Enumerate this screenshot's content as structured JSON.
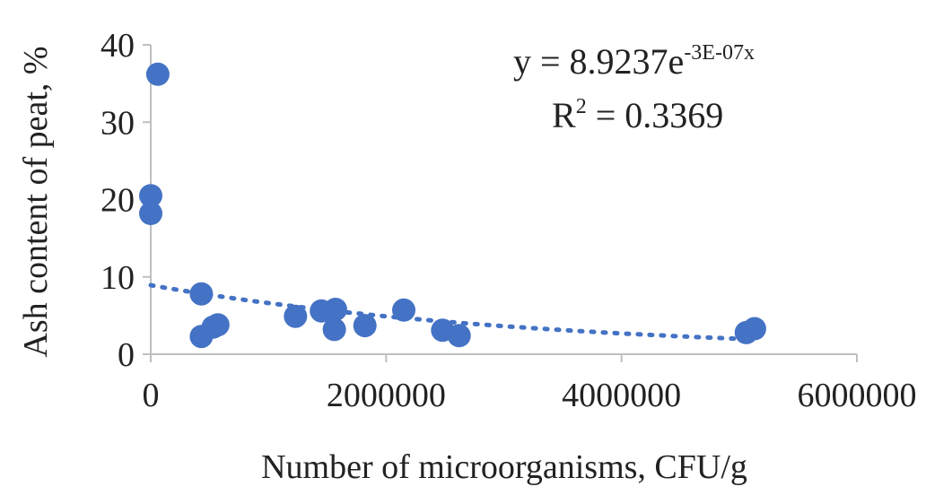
{
  "chart_data": {
    "type": "scatter",
    "title": "",
    "xlabel": "Number of microorganisms, CFU/g",
    "ylabel": "Ash content of peat, %",
    "xlim": [
      0,
      6000000
    ],
    "ylim": [
      0,
      40
    ],
    "x_ticks": [
      "0",
      "2000000",
      "4000000",
      "6000000"
    ],
    "y_ticks": [
      "0",
      "10",
      "20",
      "30",
      "40"
    ],
    "grid": false,
    "legend": "none",
    "point_color": "#4472c4",
    "trendline_color": "#4472c4",
    "series": [
      {
        "points": [
          {
            "x": 60000,
            "y": 36.2
          },
          {
            "x": 0,
            "y": 20.5
          },
          {
            "x": 0,
            "y": 18.2
          },
          {
            "x": 430000,
            "y": 7.8
          },
          {
            "x": 430000,
            "y": 2.3
          },
          {
            "x": 530000,
            "y": 3.5
          },
          {
            "x": 570000,
            "y": 3.8
          },
          {
            "x": 1230000,
            "y": 4.9
          },
          {
            "x": 1450000,
            "y": 5.6
          },
          {
            "x": 1570000,
            "y": 5.8
          },
          {
            "x": 1560000,
            "y": 3.2
          },
          {
            "x": 1820000,
            "y": 3.7
          },
          {
            "x": 2150000,
            "y": 5.7
          },
          {
            "x": 2480000,
            "y": 3.1
          },
          {
            "x": 2620000,
            "y": 2.4
          },
          {
            "x": 5060000,
            "y": 2.8
          },
          {
            "x": 5130000,
            "y": 3.3
          }
        ]
      }
    ],
    "trendline": {
      "type": "exponential",
      "a": 8.9237,
      "b": -3e-07,
      "x_range": [
        0,
        5100000
      ],
      "equation_prefix": "y = 8.9237e",
      "equation_exponent": "-3E-07x",
      "r2_prefix": "R",
      "r2_sup": "2",
      "r2_suffix": " = 0.3369"
    }
  }
}
